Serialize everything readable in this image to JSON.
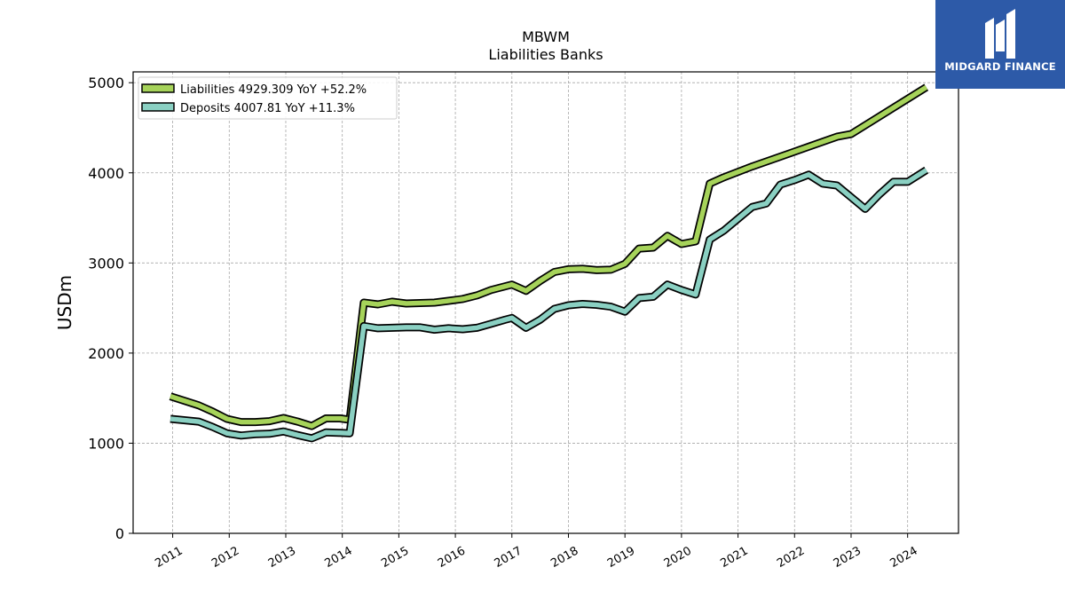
{
  "chart_data": {
    "type": "line",
    "title": "MBWM",
    "subtitle": "Liabilities Banks",
    "ylabel": "USDm",
    "xlabel": "",
    "ylim": [
      0,
      5120
    ],
    "xlim": [
      2010.3,
      2024.9
    ],
    "yticks": [
      0,
      1000,
      2000,
      3000,
      4000,
      5000
    ],
    "xticks": [
      "2011",
      "2012",
      "2013",
      "2014",
      "2015",
      "2016",
      "2017",
      "2018",
      "2019",
      "2020",
      "2021",
      "2022",
      "2023",
      "2024"
    ],
    "grid": true,
    "legend_position": "top-left",
    "series": [
      {
        "name": "Liabilities",
        "legend_label": "Liabilities  4929.309 YoY +52.2%",
        "color": "#a6d35a",
        "x": [
          2010.96,
          2011.46,
          2011.71,
          2011.96,
          2012.21,
          2012.46,
          2012.71,
          2012.96,
          2013.21,
          2013.46,
          2013.71,
          2013.96,
          2014.13,
          2014.38,
          2014.63,
          2014.88,
          2015.13,
          2015.38,
          2015.63,
          2015.88,
          2016.13,
          2016.38,
          2016.63,
          2016.88,
          2017.0,
          2017.25,
          2017.5,
          2017.75,
          2018.0,
          2018.25,
          2018.5,
          2018.75,
          2019.0,
          2019.25,
          2019.5,
          2019.75,
          2020.0,
          2020.25,
          2020.5,
          2020.75,
          2021.25,
          2021.75,
          2022.25,
          2022.75,
          2023.0,
          2024.33
        ],
        "y": [
          1520,
          1420,
          1350,
          1270,
          1235,
          1235,
          1245,
          1280,
          1240,
          1190,
          1275,
          1275,
          1260,
          2560,
          2540,
          2570,
          2550,
          2555,
          2560,
          2580,
          2600,
          2640,
          2700,
          2740,
          2760,
          2690,
          2800,
          2900,
          2930,
          2935,
          2920,
          2925,
          2990,
          3160,
          3170,
          3300,
          3210,
          3240,
          3880,
          3950,
          4070,
          4180,
          4290,
          4400,
          4430,
          4950
        ]
      },
      {
        "name": "Deposits",
        "legend_label": "Deposits  4007.81 YoY +11.3%",
        "color": "#8ad0c2",
        "x": [
          2010.96,
          2011.46,
          2011.71,
          2011.96,
          2012.21,
          2012.46,
          2012.71,
          2012.96,
          2013.21,
          2013.46,
          2013.71,
          2013.96,
          2014.13,
          2014.38,
          2014.63,
          2014.88,
          2015.13,
          2015.38,
          2015.63,
          2015.88,
          2016.13,
          2016.38,
          2016.63,
          2016.88,
          2017.0,
          2017.25,
          2017.5,
          2017.75,
          2018.0,
          2018.25,
          2018.5,
          2018.75,
          2019.0,
          2019.25,
          2019.5,
          2019.75,
          2020.0,
          2020.25,
          2020.5,
          2020.75,
          2021.0,
          2021.25,
          2021.5,
          2021.75,
          2022.0,
          2022.25,
          2022.5,
          2022.75,
          2023.0,
          2023.25,
          2023.5,
          2023.75,
          2024.0,
          2024.33
        ],
        "y": [
          1270,
          1240,
          1180,
          1110,
          1085,
          1100,
          1105,
          1130,
          1090,
          1055,
          1120,
          1115,
          1110,
          2300,
          2275,
          2280,
          2285,
          2285,
          2260,
          2275,
          2265,
          2280,
          2325,
          2370,
          2390,
          2280,
          2370,
          2490,
          2530,
          2545,
          2535,
          2515,
          2460,
          2610,
          2625,
          2760,
          2700,
          2650,
          3260,
          3360,
          3490,
          3620,
          3660,
          3870,
          3920,
          3980,
          3880,
          3860,
          3730,
          3600,
          3760,
          3900,
          3900,
          4030
        ]
      }
    ]
  },
  "logo": {
    "text": "MIDGARD FINANCE",
    "background": "#2d5aa8"
  }
}
